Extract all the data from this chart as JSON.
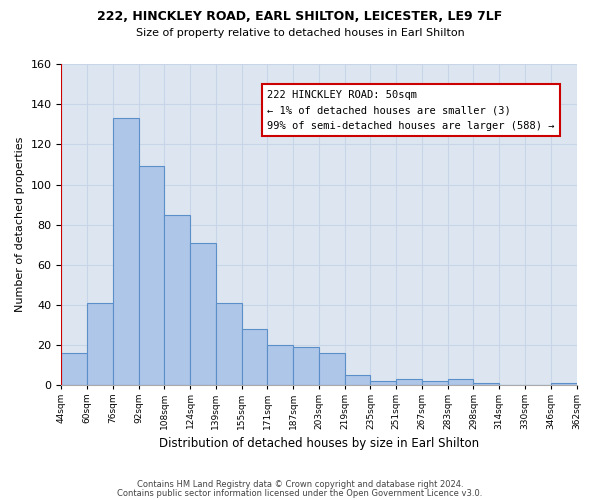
{
  "title1": "222, HINCKLEY ROAD, EARL SHILTON, LEICESTER, LE9 7LF",
  "title2": "Size of property relative to detached houses in Earl Shilton",
  "xlabel": "Distribution of detached houses by size in Earl Shilton",
  "ylabel": "Number of detached properties",
  "bin_labels": [
    "44sqm",
    "60sqm",
    "76sqm",
    "92sqm",
    "108sqm",
    "124sqm",
    "139sqm",
    "155sqm",
    "171sqm",
    "187sqm",
    "203sqm",
    "219sqm",
    "235sqm",
    "251sqm",
    "267sqm",
    "283sqm",
    "298sqm",
    "314sqm",
    "330sqm",
    "346sqm",
    "362sqm"
  ],
  "bar_heights": [
    16,
    41,
    133,
    109,
    85,
    71,
    41,
    28,
    20,
    19,
    16,
    5,
    2,
    3,
    2,
    3,
    1,
    0,
    0,
    1
  ],
  "bar_color": "#aec6e8",
  "bar_edge_color": "#5b8fc9",
  "highlight_color": "#cc0000",
  "annotation_text": "222 HINCKLEY ROAD: 50sqm\n← 1% of detached houses are smaller (3)\n99% of semi-detached houses are larger (588) →",
  "annotation_box_color": "#ffffff",
  "annotation_box_edge_color": "#cc0000",
  "grid_color": "#c8d4e8",
  "bg_color": "#dde6f0",
  "ylim": [
    0,
    160
  ],
  "yticks": [
    0,
    20,
    40,
    60,
    80,
    100,
    120,
    140,
    160
  ],
  "footer1": "Contains HM Land Registry data © Crown copyright and database right 2024.",
  "footer2": "Contains public sector information licensed under the Open Government Licence v3.0."
}
